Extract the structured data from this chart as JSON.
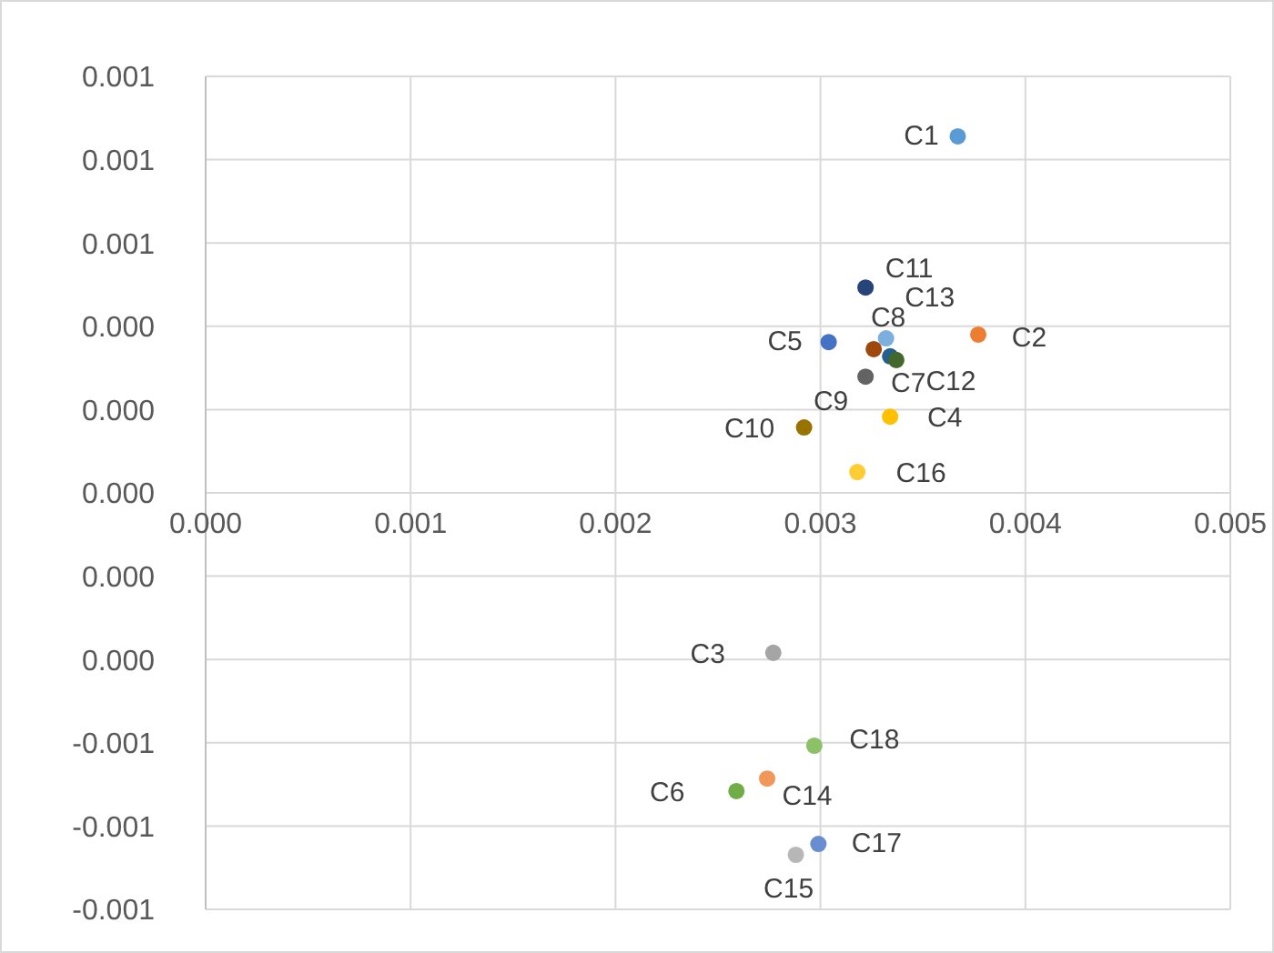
{
  "chart_data": {
    "type": "scatter",
    "marker": "circle",
    "grid": true,
    "xlim": [
      0,
      0.005
    ],
    "xticks": [
      {
        "value": 0,
        "label": "0.000"
      },
      0.001,
      0.002,
      0.003,
      0.004,
      0.005
    ],
    "ylim": [
      -0.001,
      0.001
    ],
    "yticks": [
      {
        "value": -0.001,
        "label": "-0.001"
      },
      {
        "value": -0.0008,
        "label": "-0.001"
      },
      {
        "value": -0.0006,
        "label": "-0.001"
      },
      {
        "value": -0.0004,
        "label": "0.000"
      },
      {
        "value": -0.0002,
        "label": "0.000"
      },
      {
        "value": 0,
        "label": "0.000"
      },
      {
        "value": 0.0002,
        "label": "0.000"
      },
      {
        "value": 0.0004,
        "label": "0.000"
      },
      {
        "value": 0.0006,
        "label": "0.001"
      },
      {
        "value": 0.0008,
        "label": "0.001"
      },
      {
        "value": 0.001,
        "label": "0.001"
      }
    ],
    "series": [
      {
        "name": "C1",
        "color": "#5b9bd5",
        "x": [
          0.00367
        ],
        "values": [
          0.000856
        ]
      },
      {
        "name": "C2",
        "color": "#ed7d31",
        "x": [
          0.00377
        ],
        "values": [
          0.00038
        ]
      },
      {
        "name": "C3",
        "color": "#a5a5a5",
        "x": [
          0.00277
        ],
        "values": [
          -0.000384
        ]
      },
      {
        "name": "C4",
        "color": "#ffc000",
        "x": [
          0.00334
        ],
        "values": [
          0.000183
        ]
      },
      {
        "name": "C5",
        "color": "#4472c4",
        "x": [
          0.00304
        ],
        "values": [
          0.000362
        ]
      },
      {
        "name": "C6",
        "color": "#70ad47",
        "x": [
          0.00259
        ],
        "values": [
          -0.000716
        ]
      },
      {
        "name": "C7",
        "color": "#255e91",
        "x": [
          0.00334
        ],
        "values": [
          0.000328
        ]
      },
      {
        "name": "C8",
        "color": "#9e480e",
        "x": [
          0.00326
        ],
        "values": [
          0.000345
        ]
      },
      {
        "name": "C9",
        "color": "#636363",
        "x": [
          0.00322
        ],
        "values": [
          0.000279
        ]
      },
      {
        "name": "C10",
        "color": "#997300",
        "x": [
          0.00292
        ],
        "values": [
          0.000157
        ]
      },
      {
        "name": "C11",
        "color": "#264478",
        "x": [
          0.00322
        ],
        "values": [
          0.000493
        ]
      },
      {
        "name": "C12",
        "color": "#43682b",
        "x": [
          0.00337
        ],
        "values": [
          0.000319
        ]
      },
      {
        "name": "C13",
        "color": "#7cafdd",
        "x": [
          0.00332
        ],
        "values": [
          0.000371
        ]
      },
      {
        "name": "C14",
        "color": "#f1975a",
        "x": [
          0.00274
        ],
        "values": [
          -0.000686
        ]
      },
      {
        "name": "C15",
        "color": "#b7b7b7",
        "x": [
          0.00288
        ],
        "values": [
          -0.000869
        ]
      },
      {
        "name": "C16",
        "color": "#ffcd33",
        "x": [
          0.00318
        ],
        "values": [
          5e-05
        ]
      },
      {
        "name": "C17",
        "color": "#698ed0",
        "x": [
          0.00299
        ],
        "values": [
          -0.000843
        ]
      },
      {
        "name": "C18",
        "color": "#8cc168",
        "x": [
          0.00297
        ],
        "values": [
          -0.000607
        ]
      }
    ]
  }
}
